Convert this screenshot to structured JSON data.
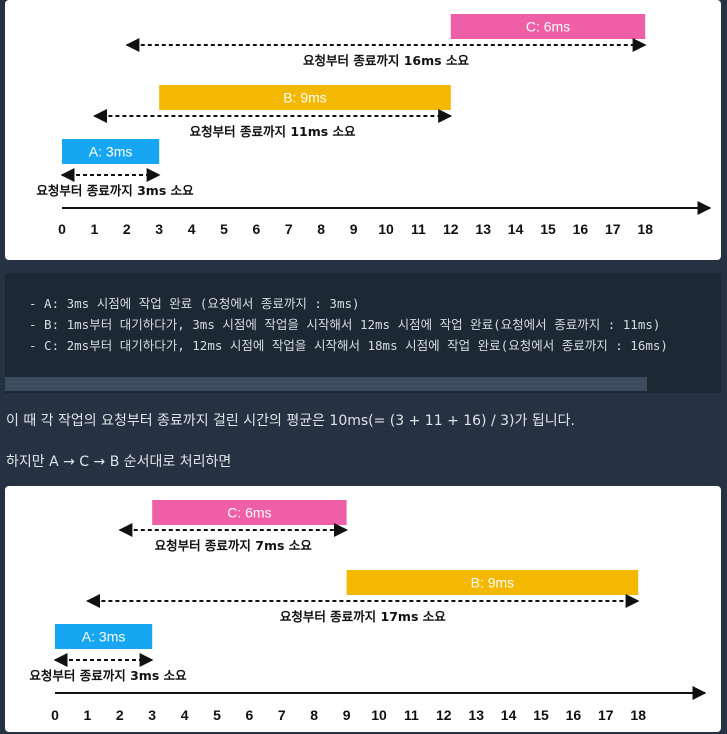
{
  "diagram_top": {
    "bars": [
      {
        "label": "C: 6ms",
        "start": 12,
        "end": 18,
        "color": "#ee5fa8",
        "row": 0
      },
      {
        "label": "B: 9ms",
        "start": 3,
        "end": 12,
        "color": "#f5b800",
        "row": 1
      },
      {
        "label": "A: 3ms",
        "start": 0,
        "end": 3,
        "color": "#17a7f2",
        "row": 2
      }
    ],
    "spans": [
      {
        "from": 2,
        "to": 18,
        "label": "요청부터 종료까지 16ms 소요",
        "row": 0
      },
      {
        "from": 1,
        "to": 12,
        "label": "요청부터 종료까지 11ms 소요",
        "row": 1
      },
      {
        "from": 0,
        "to": 3,
        "label": "요청부터 종료까지 3ms 소요",
        "row": 2
      }
    ],
    "ticks": [
      "0",
      "1",
      "2",
      "3",
      "4",
      "5",
      "6",
      "7",
      "8",
      "9",
      "10",
      "11",
      "12",
      "13",
      "14",
      "15",
      "16",
      "17",
      "18"
    ]
  },
  "code": {
    "lines": [
      "- A: 3ms 시점에 작업 완료 (요청에서 종료까지 : 3ms)",
      "- B: 1ms부터 대기하다가, 3ms 시점에 작업을 시작해서 12ms 시점에 작업 완료(요청에서 종료까지 : 11ms)",
      "- C: 2ms부터 대기하다가, 12ms 시점에 작업을 시작해서 18ms 시점에 작업 완료(요청에서 종료까지 : 16ms)"
    ]
  },
  "text": {
    "paragraph1": "이 때 각 작업의 요청부터 종료까지 걸린 시간의 평균은 10ms(= (3 + 11 + 16) / 3)가 됩니다.",
    "paragraph2": "하지만 A → C → B 순서대로 처리하면"
  },
  "diagram_bottom": {
    "bars": [
      {
        "label": "C: 6ms",
        "start": 3,
        "end": 9,
        "color": "#ee5fa8",
        "row": 0
      },
      {
        "label": "B: 9ms",
        "start": 9,
        "end": 18,
        "color": "#f5b800",
        "row": 1
      },
      {
        "label": "A: 3ms",
        "start": 0,
        "end": 3,
        "color": "#17a7f2",
        "row": 2
      }
    ],
    "spans": [
      {
        "from": 2,
        "to": 9,
        "label": "요청부터 종료까지 7ms 소요",
        "row": 0
      },
      {
        "from": 1,
        "to": 18,
        "label": "요청부터 종료까지 17ms 소요",
        "row": 1
      },
      {
        "from": 0,
        "to": 3,
        "label": "요청부터 종료까지 3ms 소요",
        "row": 2
      }
    ],
    "ticks": [
      "0",
      "1",
      "2",
      "3",
      "4",
      "5",
      "6",
      "7",
      "8",
      "9",
      "10",
      "11",
      "12",
      "13",
      "14",
      "15",
      "16",
      "17",
      "18"
    ]
  }
}
